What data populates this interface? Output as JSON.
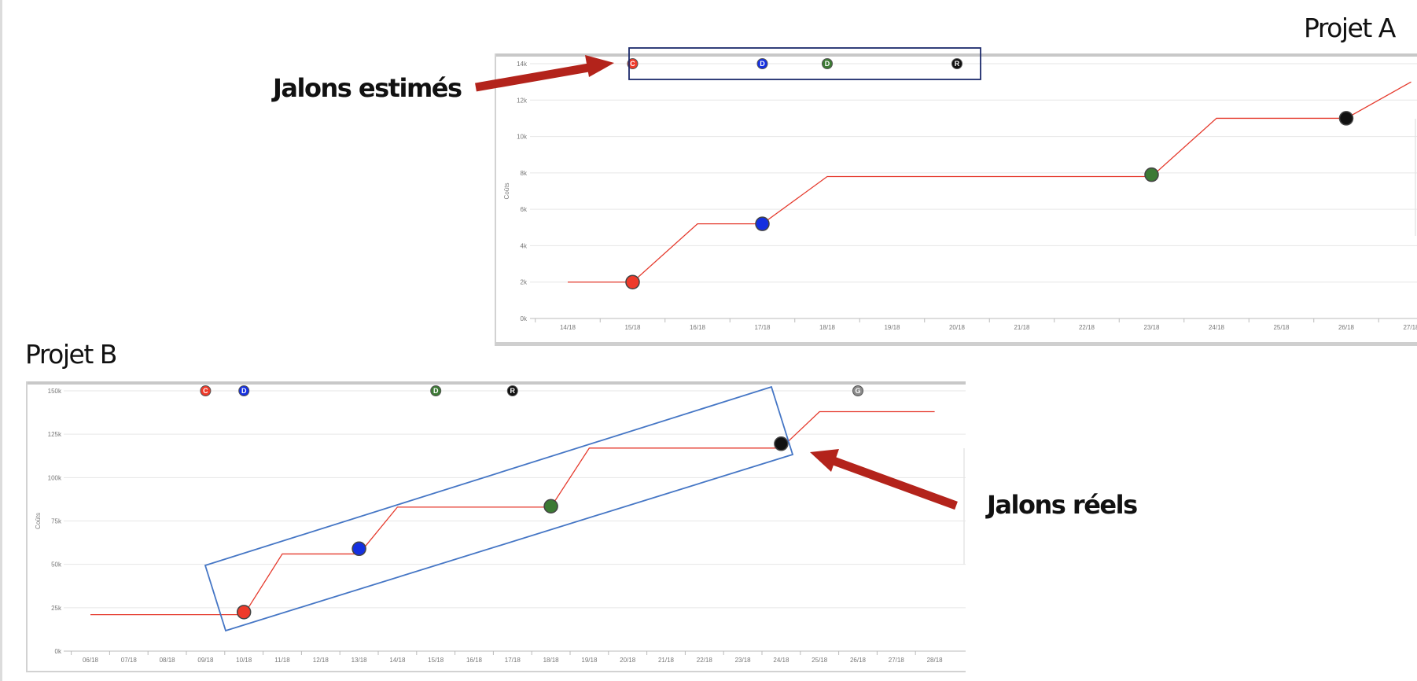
{
  "annotations": {
    "project_a_title": "Projet A",
    "project_b_title": "Projet B",
    "estimated_label": "Jalons estimés",
    "actual_label": "Jalons réels"
  },
  "colors": {
    "line": "#e53a2d",
    "milestone_C": "#ee3a2a",
    "milestone_D": "#1530e0",
    "milestone_Dgreen": "#3c7a34",
    "milestone_R": "#111111",
    "milestone_G": "#8a8a8a",
    "arrow": "#b3231b",
    "estimated_box": "#1c2a6b",
    "actual_box": "#4576c5"
  },
  "chart_data": [
    {
      "type": "line",
      "title": "Projet A",
      "ylabel": "Coûts",
      "x": [
        "14/18",
        "15/18",
        "16/18",
        "17/18",
        "18/18",
        "19/18",
        "20/18",
        "21/18",
        "22/18",
        "23/18",
        "24/18",
        "25/18",
        "26/18",
        "27/18"
      ],
      "ylim": [
        0,
        14000
      ],
      "yticks": [
        "0k",
        "2k",
        "4k",
        "6k",
        "8k",
        "10k",
        "12k",
        "14k"
      ],
      "series": [
        {
          "values": [
            {
              "x": "14/18",
              "y": 2000
            },
            {
              "x": "15/18",
              "y": 2000
            },
            {
              "x": "16/18",
              "y": 5200
            },
            {
              "x": "17/18",
              "y": 5200
            },
            {
              "x": "18/18",
              "y": 7800
            },
            {
              "x": "23/18",
              "y": 7800
            },
            {
              "x": "24/18",
              "y": 11000
            },
            {
              "x": "26/18",
              "y": 11000
            },
            {
              "x": "27/18",
              "y": 13000
            }
          ]
        }
      ],
      "actual_milestones": [
        {
          "x": "15/18",
          "y": 2000,
          "color": "#ee3a2a"
        },
        {
          "x": "17/18",
          "y": 5200,
          "color": "#1530e0"
        },
        {
          "x": "23/18",
          "y": 7900,
          "color": "#3c7a34"
        },
        {
          "x": "26/18",
          "y": 11000,
          "color": "#111111"
        }
      ],
      "estimated_milestones": [
        {
          "letter": "C",
          "x": "15/18",
          "color": "#ee3a2a"
        },
        {
          "letter": "D",
          "x": "17/18",
          "color": "#1530e0"
        },
        {
          "letter": "D",
          "x": "18/18",
          "color": "#3c7a34"
        },
        {
          "letter": "R",
          "x": "20/18",
          "color": "#111111"
        }
      ]
    },
    {
      "type": "line",
      "title": "Projet B",
      "ylabel": "Coûts",
      "x": [
        "06/18",
        "07/18",
        "08/18",
        "09/18",
        "10/18",
        "11/18",
        "12/18",
        "13/18",
        "14/18",
        "15/18",
        "16/18",
        "17/18",
        "18/18",
        "19/18",
        "20/18",
        "21/18",
        "22/18",
        "23/18",
        "24/18",
        "25/18",
        "26/18",
        "27/18",
        "28/18"
      ],
      "ylim": [
        0,
        150000
      ],
      "yticks": [
        "0k",
        "25k",
        "50k",
        "75k",
        "100k",
        "125k",
        "150k"
      ],
      "series": [
        {
          "values": [
            {
              "x": "06/18",
              "y": 21000
            },
            {
              "x": "10/18",
              "y": 21000
            },
            {
              "x": "11/18",
              "y": 56000
            },
            {
              "x": "13/18",
              "y": 56000
            },
            {
              "x": "14/18",
              "y": 83000
            },
            {
              "x": "18/18",
              "y": 83000
            },
            {
              "x": "19/18",
              "y": 117000
            },
            {
              "x": "24/18",
              "y": 117000
            },
            {
              "x": "25/18",
              "y": 138000
            },
            {
              "x": "28/18",
              "y": 138000
            }
          ]
        }
      ],
      "actual_milestones": [
        {
          "x": "10/18",
          "y": 22500,
          "color": "#ee3a2a"
        },
        {
          "x": "13/18",
          "y": 59000,
          "color": "#1530e0"
        },
        {
          "x": "18/18",
          "y": 83500,
          "color": "#3c7a34"
        },
        {
          "x": "24/18",
          "y": 119500,
          "color": "#111111"
        }
      ],
      "estimated_milestones": [
        {
          "letter": "C",
          "x": "09/18",
          "color": "#ee3a2a"
        },
        {
          "letter": "D",
          "x": "10/18",
          "color": "#1530e0"
        },
        {
          "letter": "D",
          "x": "15/18",
          "color": "#3c7a34"
        },
        {
          "letter": "R",
          "x": "17/18",
          "color": "#111111"
        },
        {
          "letter": "G",
          "x": "26/18",
          "color": "#8a8a8a"
        }
      ]
    }
  ]
}
